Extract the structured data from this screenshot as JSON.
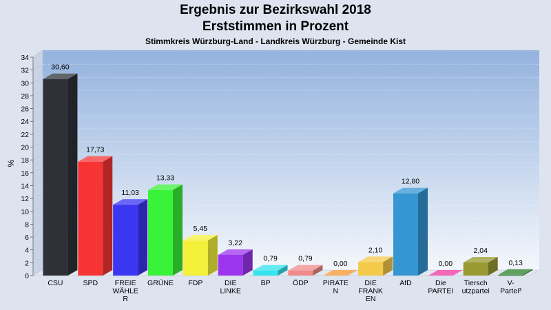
{
  "chart_data": {
    "type": "bar",
    "title": "Ergebnis zur Bezirkswahl 2018",
    "subtitle": "Erststimmen in Prozent",
    "subsubtitle": "Stimmkreis Würzburg-Land - Landkreis Würzburg - Gemeinde Kist",
    "ylabel": "%",
    "ylim": [
      0,
      34
    ],
    "yticks": [
      0,
      2,
      4,
      6,
      8,
      10,
      12,
      14,
      16,
      18,
      20,
      22,
      24,
      26,
      28,
      30,
      32,
      34
    ],
    "grid": true,
    "categories": [
      {
        "lines": [
          "CSU"
        ]
      },
      {
        "lines": [
          "SPD"
        ]
      },
      {
        "lines": [
          "FREIE",
          "WÄHLE",
          "R"
        ]
      },
      {
        "lines": [
          "GRÜNE"
        ]
      },
      {
        "lines": [
          "FDP"
        ]
      },
      {
        "lines": [
          "DIE",
          "LINKE"
        ]
      },
      {
        "lines": [
          "BP"
        ]
      },
      {
        "lines": [
          "ÖDP"
        ]
      },
      {
        "lines": [
          "PIRATE",
          "N"
        ]
      },
      {
        "lines": [
          "DIE",
          "FRANK",
          "EN"
        ]
      },
      {
        "lines": [
          "AfD"
        ]
      },
      {
        "lines": [
          "Die",
          "PARTEI"
        ]
      },
      {
        "lines": [
          "Tiersch",
          "utzpartei"
        ]
      },
      {
        "lines": [
          "V-",
          "Partei³"
        ]
      }
    ],
    "values": [
      30.6,
      17.73,
      11.03,
      13.33,
      5.45,
      3.22,
      0.79,
      0.79,
      0.0,
      2.1,
      12.8,
      0.0,
      2.04,
      0.13
    ],
    "labels": [
      "30,60",
      "17,73",
      "11,03",
      "13,33",
      "5,45",
      "3,22",
      "0,79",
      "0,79",
      "0,00",
      "2,10",
      "12,80",
      "0,00",
      "2,04",
      "0,13"
    ],
    "colors": [
      "#2e3138",
      "#f73434",
      "#3a36f2",
      "#3af23a",
      "#f5f03a",
      "#9b36ee",
      "#33e3ee",
      "#f08a8a",
      "#f7962f",
      "#f5c94a",
      "#3596d3",
      "#ef36a0",
      "#9a9a32",
      "#2c7f2c"
    ]
  }
}
